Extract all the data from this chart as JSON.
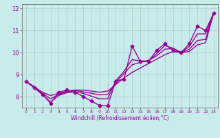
{
  "xlabel": "Windchill (Refroidissement éolien,°C)",
  "xlim": [
    -0.5,
    23.5
  ],
  "ylim": [
    7.5,
    12.2
  ],
  "yticks": [
    8,
    9,
    10,
    11,
    12
  ],
  "xticks": [
    0,
    1,
    2,
    3,
    4,
    5,
    6,
    7,
    8,
    9,
    10,
    11,
    12,
    13,
    14,
    15,
    16,
    17,
    18,
    19,
    20,
    21,
    22,
    23
  ],
  "bg_color": "#c8ecec",
  "grid_color": "#b0c8c8",
  "line_color": "#990099",
  "main_y": [
    8.7,
    8.4,
    8.1,
    7.7,
    8.2,
    8.3,
    8.2,
    8.0,
    7.8,
    7.6,
    7.6,
    8.7,
    8.8,
    10.3,
    9.6,
    9.6,
    10.1,
    10.4,
    10.1,
    10.0,
    10.4,
    11.2,
    11.0,
    11.8
  ],
  "ref_lines": [
    [
      8.7,
      8.45,
      8.2,
      8.05,
      8.15,
      8.25,
      8.3,
      8.3,
      8.25,
      8.2,
      8.25,
      8.55,
      8.85,
      9.1,
      9.3,
      9.5,
      9.7,
      9.9,
      10.05,
      10.0,
      10.05,
      10.35,
      10.45,
      11.8
    ],
    [
      8.7,
      8.42,
      8.15,
      7.9,
      8.1,
      8.22,
      8.28,
      8.22,
      8.15,
      8.08,
      8.1,
      8.65,
      9.05,
      9.45,
      9.55,
      9.65,
      9.85,
      10.15,
      10.2,
      10.0,
      10.15,
      10.55,
      10.6,
      11.8
    ],
    [
      8.7,
      8.4,
      8.1,
      7.75,
      8.05,
      8.18,
      8.22,
      8.15,
      8.02,
      7.9,
      7.9,
      8.72,
      9.15,
      9.68,
      9.62,
      9.62,
      9.95,
      10.32,
      10.2,
      10.0,
      10.28,
      10.85,
      10.85,
      11.8
    ]
  ],
  "marker": "D",
  "markersize": 2.5,
  "linewidth": 1.0
}
